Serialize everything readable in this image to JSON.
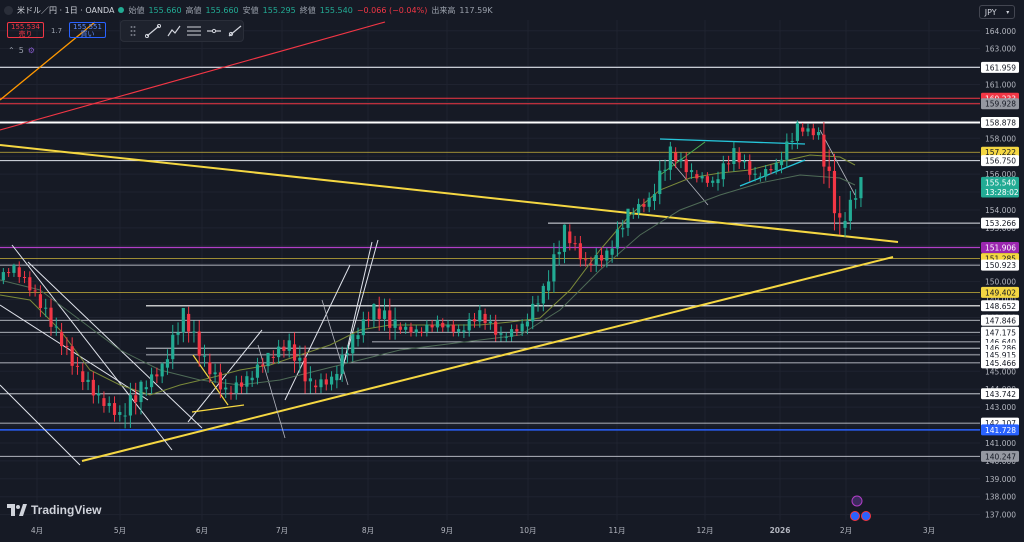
{
  "header": {
    "symbol": "米ドル／円 · 1日 · OANDA",
    "open_label": "始値",
    "open": "155.660",
    "high_label": "高値",
    "high": "155.660",
    "low_label": "安値",
    "low": "155.295",
    "close_label": "終値",
    "close": "155.540",
    "change": "−0.066 (−0.04%)",
    "volume_label": "出来高",
    "volume": "117.59K"
  },
  "trade": {
    "sell_price": "155.534",
    "sell_label": "売り",
    "spread": "1.7",
    "buy_price": "155.551",
    "buy_label": "買い"
  },
  "indicators_count": "5",
  "currency_button": "JPY",
  "branding": "TradingView",
  "colors": {
    "background": "#161a25",
    "up": "#22ab94",
    "down": "#f23645",
    "yellow_trend": "#f5d742",
    "purple_line": "#b13ec7",
    "blue_line": "#2962ff",
    "red_line": "#f23645",
    "orange_line": "#ff9800",
    "white_line": "#e0e3eb"
  },
  "chart_data": {
    "type": "candlestick",
    "x_ticks": [
      "4月",
      "5月",
      "6月",
      "7月",
      "8月",
      "9月",
      "10月",
      "11月",
      "12月",
      "2026",
      "2月",
      "3月"
    ],
    "y_ticks": [
      "164.000",
      "163.000",
      "162.000",
      "161.000",
      "160.000",
      "159.000",
      "158.000",
      "157.000",
      "156.000",
      "155.000",
      "154.000",
      "153.000",
      "152.000",
      "151.000",
      "150.000",
      "149.000",
      "148.000",
      "147.000",
      "146.000",
      "145.000",
      "144.000",
      "143.000",
      "142.000",
      "141.000",
      "140.000",
      "139.000",
      "138.000",
      "137.000"
    ],
    "ylim": [
      136.7,
      164.6
    ],
    "price_labels": [
      {
        "text": "161.959",
        "value": 161.959,
        "style": "white"
      },
      {
        "text": "160.233",
        "value": 160.233,
        "style": "red"
      },
      {
        "text": "159.928",
        "value": 159.928,
        "style": "gray"
      },
      {
        "text": "158.878",
        "value": 158.878,
        "style": "white"
      },
      {
        "text": "157.222",
        "value": 157.222,
        "style": "yellow"
      },
      {
        "text": "156.750",
        "value": 156.75,
        "style": "white"
      },
      {
        "text": "155.540",
        "value": 155.54,
        "style": "current"
      },
      {
        "text": "13:28:02",
        "value": 155.0,
        "style": "current"
      },
      {
        "text": "153.266",
        "value": 153.266,
        "style": "white"
      },
      {
        "text": "151.906",
        "value": 151.906,
        "style": "purple"
      },
      {
        "text": "151.285",
        "value": 151.285,
        "style": "yellow"
      },
      {
        "text": "150.923",
        "value": 150.923,
        "style": "white"
      },
      {
        "text": "149.402",
        "value": 149.402,
        "style": "yellow"
      },
      {
        "text": "148.652",
        "value": 148.652,
        "style": "white"
      },
      {
        "text": "147.846",
        "value": 147.846,
        "style": "white"
      },
      {
        "text": "147.175",
        "value": 147.175,
        "style": "white"
      },
      {
        "text": "146.640",
        "value": 146.64,
        "style": "white"
      },
      {
        "text": "146.286",
        "value": 146.286,
        "style": "white"
      },
      {
        "text": "145.915",
        "value": 145.915,
        "style": "white"
      },
      {
        "text": "145.466",
        "value": 145.466,
        "style": "white"
      },
      {
        "text": "143.742",
        "value": 143.742,
        "style": "white"
      },
      {
        "text": "142.107",
        "value": 142.107,
        "style": "white"
      },
      {
        "text": "141.728",
        "value": 141.728,
        "style": "blue"
      },
      {
        "text": "140.247",
        "value": 140.247,
        "style": "gray"
      }
    ],
    "horizontal_levels": [
      {
        "value": 161.959,
        "color": "#e0e3eb",
        "from": "start",
        "width": 1.2
      },
      {
        "value": 160.233,
        "color": "#f23645",
        "from": "start",
        "width": 1
      },
      {
        "value": 159.928,
        "color": "#f23645",
        "from": "start",
        "width": 1
      },
      {
        "value": 158.878,
        "color": "#ffffff",
        "from": "start",
        "width": 2
      },
      {
        "value": 157.222,
        "color": "#c9b23a",
        "from": "start",
        "width": 0.7
      },
      {
        "value": 156.75,
        "color": "#e0e3eb",
        "from": "start",
        "width": 1
      },
      {
        "value": 153.266,
        "color": "#e0e3eb",
        "from": "Oct",
        "width": 1
      },
      {
        "value": 151.906,
        "color": "#b13ec7",
        "from": "start",
        "width": 1.2
      },
      {
        "value": 151.285,
        "color": "#c9b23a",
        "from": "start",
        "width": 0.7
      },
      {
        "value": 150.923,
        "color": "#e0e3eb",
        "from": "start",
        "width": 0.7
      },
      {
        "value": 149.402,
        "color": "#c9b23a",
        "from": "start",
        "width": 0.7
      },
      {
        "value": 148.652,
        "color": "#ffffff",
        "from": "May",
        "width": 1.2
      },
      {
        "value": 147.846,
        "color": "#e0e3eb",
        "from": "start",
        "width": 0.8
      },
      {
        "value": 147.175,
        "color": "#e0e3eb",
        "from": "start",
        "width": 0.8
      },
      {
        "value": 146.64,
        "color": "#e0e3eb",
        "from": "Aug",
        "width": 0.8
      },
      {
        "value": 146.286,
        "color": "#e0e3eb",
        "from": "May",
        "width": 0.8
      },
      {
        "value": 145.915,
        "color": "#e0e3eb",
        "from": "May",
        "width": 0.8
      },
      {
        "value": 145.466,
        "color": "#e0e3eb",
        "from": "start",
        "width": 0.8
      },
      {
        "value": 143.742,
        "color": "#e0e3eb",
        "from": "start",
        "width": 0.8
      },
      {
        "value": 142.107,
        "color": "#e0e3eb",
        "from": "start",
        "width": 0.8
      },
      {
        "value": 141.728,
        "color": "#2962ff",
        "from": "start",
        "width": 1.5
      },
      {
        "value": 140.247,
        "color": "#b2b5be",
        "from": "start",
        "width": 1
      }
    ],
    "ohlc_weekly_approx": [
      [
        150.0,
        151.0,
        149.5,
        150.8
      ],
      [
        150.8,
        151.2,
        149.0,
        149.3
      ],
      [
        149.3,
        149.8,
        146.5,
        147.2
      ],
      [
        147.2,
        147.8,
        144.5,
        145.0
      ],
      [
        145.0,
        146.0,
        143.0,
        143.5
      ],
      [
        143.5,
        144.5,
        142.0,
        142.5
      ],
      [
        142.5,
        144.5,
        139.9,
        144.0
      ],
      [
        144.0,
        145.5,
        143.0,
        145.2
      ],
      [
        145.2,
        148.5,
        144.8,
        148.2
      ],
      [
        148.2,
        148.6,
        144.5,
        145.5
      ],
      [
        145.5,
        146.2,
        143.0,
        143.8
      ],
      [
        143.8,
        145.0,
        142.5,
        144.5
      ],
      [
        144.5,
        146.0,
        143.5,
        145.8
      ],
      [
        145.8,
        147.5,
        145.0,
        146.5
      ],
      [
        146.5,
        148.0,
        143.5,
        144.2
      ],
      [
        144.2,
        145.0,
        142.8,
        144.5
      ],
      [
        144.5,
        147.0,
        144.0,
        146.8
      ],
      [
        146.8,
        148.8,
        146.0,
        148.5
      ],
      [
        148.5,
        150.9,
        146.5,
        147.5
      ],
      [
        147.5,
        148.0,
        146.5,
        147.2
      ],
      [
        147.2,
        148.5,
        146.8,
        147.7
      ],
      [
        147.7,
        148.2,
        146.5,
        147.2
      ],
      [
        147.2,
        148.7,
        146.4,
        148.2
      ],
      [
        148.2,
        148.5,
        146.0,
        146.9
      ],
      [
        146.9,
        148.0,
        146.3,
        147.5
      ],
      [
        147.5,
        149.9,
        147.0,
        149.5
      ],
      [
        149.5,
        153.2,
        149.0,
        152.8
      ],
      [
        152.8,
        153.2,
        150.5,
        151.0
      ],
      [
        151.0,
        151.9,
        149.3,
        151.5
      ],
      [
        151.5,
        154.0,
        151.0,
        153.8
      ],
      [
        153.8,
        155.0,
        153.0,
        154.5
      ],
      [
        154.5,
        157.8,
        154.0,
        157.2
      ],
      [
        157.2,
        157.5,
        155.0,
        156.0
      ],
      [
        156.0,
        156.5,
        155.0,
        155.5
      ],
      [
        155.5,
        157.8,
        155.0,
        157.2
      ],
      [
        157.2,
        157.5,
        155.0,
        155.8
      ],
      [
        155.8,
        157.0,
        155.5,
        156.5
      ],
      [
        156.5,
        159.0,
        156.0,
        158.6
      ],
      [
        158.6,
        159.2,
        157.5,
        158.2
      ],
      [
        158.2,
        158.9,
        152.5,
        153.0
      ],
      [
        153.0,
        155.5,
        152.2,
        155.54
      ]
    ]
  }
}
